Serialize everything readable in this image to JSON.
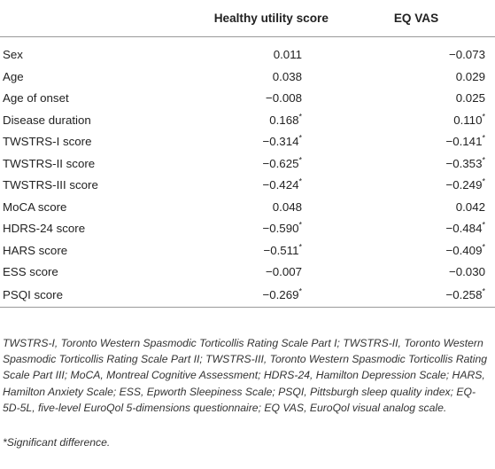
{
  "table": {
    "headers": [
      "",
      "Healthy utility score",
      "EQ VAS"
    ],
    "rows": [
      {
        "label": "Sex",
        "hus": "0.011",
        "hus_sig": "",
        "eq": "−0.073",
        "eq_sig": ""
      },
      {
        "label": "Age",
        "hus": "0.038",
        "hus_sig": "",
        "eq": "0.029",
        "eq_sig": ""
      },
      {
        "label": "Age of onset",
        "hus": "−0.008",
        "hus_sig": "",
        "eq": "0.025",
        "eq_sig": ""
      },
      {
        "label": "Disease duration",
        "hus": "0.168",
        "hus_sig": "*",
        "eq": "0.110",
        "eq_sig": "*"
      },
      {
        "label": "TWSTRS-I score",
        "hus": "−0.314",
        "hus_sig": "*",
        "eq": "−0.141",
        "eq_sig": "*"
      },
      {
        "label": "TWSTRS-II score",
        "hus": "−0.625",
        "hus_sig": "*",
        "eq": "−0.353",
        "eq_sig": "*"
      },
      {
        "label": "TWSTRS-III score",
        "hus": "−0.424",
        "hus_sig": "*",
        "eq": "−0.249",
        "eq_sig": "*"
      },
      {
        "label": "MoCA score",
        "hus": "0.048",
        "hus_sig": "",
        "eq": "0.042",
        "eq_sig": ""
      },
      {
        "label": "HDRS-24 score",
        "hus": "−0.590",
        "hus_sig": "*",
        "eq": "−0.484",
        "eq_sig": "*"
      },
      {
        "label": "HARS score",
        "hus": "−0.511",
        "hus_sig": "*",
        "eq": "−0.409",
        "eq_sig": "*"
      },
      {
        "label": "ESS score",
        "hus": "−0.007",
        "hus_sig": "",
        "eq": "−0.030",
        "eq_sig": ""
      },
      {
        "label": "PSQI score",
        "hus": "−0.269",
        "hus_sig": "*",
        "eq": "−0.258",
        "eq_sig": "*"
      }
    ]
  },
  "footnotes": {
    "abbreviations": "TWSTRS-I, Toronto Western Spasmodic Torticollis Rating Scale Part I; TWSTRS-II, Toronto Western Spasmodic Torticollis Rating Scale Part II; TWSTRS-III, Toronto Western Spasmodic Torticollis Rating Scale Part III; MoCA, Montreal Cognitive Assessment; HDRS-24, Hamilton Depression Scale; HARS, Hamilton Anxiety Scale; ESS, Epworth Sleepiness Scale; PSQI, Pittsburgh sleep quality index; EQ-5D-5L, five-level EuroQol 5-dimensions questionnaire; EQ VAS, EuroQol visual analog scale.",
    "significance": "*Significant difference."
  }
}
